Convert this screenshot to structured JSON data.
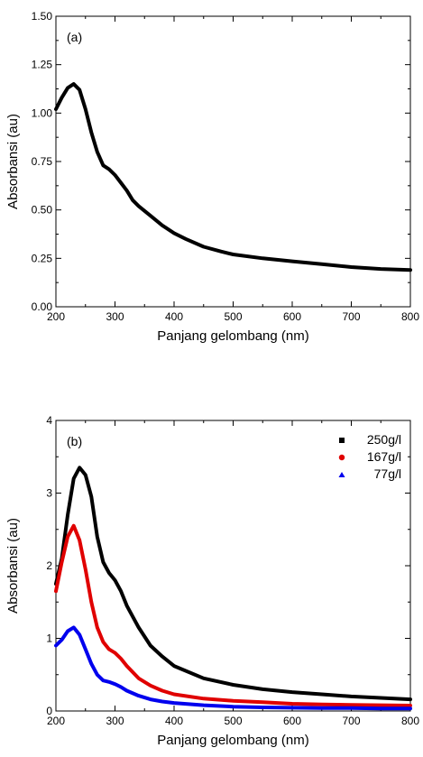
{
  "chart_data": [
    {
      "type": "line",
      "panel_label": "(a)",
      "xlabel": "Panjang gelombang (nm)",
      "ylabel": "Absorbansi (au)",
      "xlim": [
        200,
        800
      ],
      "ylim": [
        0,
        1.5
      ],
      "x_ticks": [
        "200",
        "300",
        "400",
        "500",
        "600",
        "700",
        "800"
      ],
      "y_ticks": [
        "0.00",
        "0.25",
        "0.50",
        "0.75",
        "1.00",
        "1.25",
        "1.50"
      ],
      "grid": false,
      "series": [
        {
          "color": "#000000",
          "x": [
            200,
            210,
            220,
            230,
            240,
            250,
            260,
            270,
            280,
            290,
            300,
            310,
            320,
            330,
            340,
            360,
            380,
            400,
            420,
            450,
            480,
            500,
            550,
            600,
            650,
            700,
            750,
            800
          ],
          "y": [
            1.02,
            1.08,
            1.13,
            1.15,
            1.12,
            1.02,
            0.9,
            0.8,
            0.73,
            0.71,
            0.68,
            0.64,
            0.6,
            0.55,
            0.52,
            0.47,
            0.42,
            0.38,
            0.35,
            0.31,
            0.285,
            0.27,
            0.25,
            0.235,
            0.22,
            0.205,
            0.195,
            0.19
          ]
        }
      ]
    },
    {
      "type": "line",
      "panel_label": "(b)",
      "xlabel": "Panjang gelombang (nm)",
      "ylabel": "Absorbansi (au)",
      "xlim": [
        200,
        800
      ],
      "ylim": [
        0,
        4
      ],
      "x_ticks": [
        "200",
        "300",
        "400",
        "500",
        "600",
        "700",
        "800"
      ],
      "y_ticks": [
        "0",
        "1",
        "2",
        "3",
        "4"
      ],
      "grid": false,
      "legend_position": "top-right",
      "series": [
        {
          "name": "250g/l",
          "color": "#000000",
          "marker": "square",
          "x": [
            200,
            210,
            220,
            230,
            240,
            250,
            260,
            270,
            280,
            290,
            300,
            310,
            320,
            340,
            360,
            380,
            400,
            450,
            500,
            550,
            600,
            650,
            700,
            750,
            800
          ],
          "y": [
            1.75,
            2.1,
            2.7,
            3.2,
            3.35,
            3.25,
            2.95,
            2.4,
            2.05,
            1.9,
            1.8,
            1.65,
            1.45,
            1.15,
            0.9,
            0.75,
            0.62,
            0.45,
            0.36,
            0.3,
            0.26,
            0.23,
            0.2,
            0.18,
            0.16
          ]
        },
        {
          "name": "167g/l",
          "color": "#e00000",
          "marker": "circle",
          "x": [
            200,
            210,
            220,
            230,
            240,
            250,
            260,
            270,
            280,
            290,
            300,
            310,
            320,
            340,
            360,
            380,
            400,
            450,
            500,
            550,
            600,
            650,
            700,
            750,
            800
          ],
          "y": [
            1.65,
            2.05,
            2.4,
            2.55,
            2.35,
            1.95,
            1.5,
            1.15,
            0.95,
            0.85,
            0.8,
            0.72,
            0.62,
            0.45,
            0.35,
            0.28,
            0.23,
            0.17,
            0.14,
            0.12,
            0.1,
            0.09,
            0.085,
            0.08,
            0.075
          ]
        },
        {
          "name": "77g/l",
          "color": "#0000ee",
          "marker": "triangle",
          "x": [
            200,
            210,
            220,
            230,
            240,
            250,
            260,
            270,
            280,
            290,
            300,
            310,
            320,
            340,
            360,
            380,
            400,
            450,
            500,
            550,
            600,
            650,
            700,
            750,
            800
          ],
          "y": [
            0.9,
            0.98,
            1.1,
            1.15,
            1.05,
            0.85,
            0.65,
            0.5,
            0.42,
            0.4,
            0.37,
            0.33,
            0.28,
            0.21,
            0.16,
            0.13,
            0.11,
            0.08,
            0.06,
            0.05,
            0.045,
            0.04,
            0.04,
            0.035,
            0.035
          ]
        }
      ]
    }
  ]
}
